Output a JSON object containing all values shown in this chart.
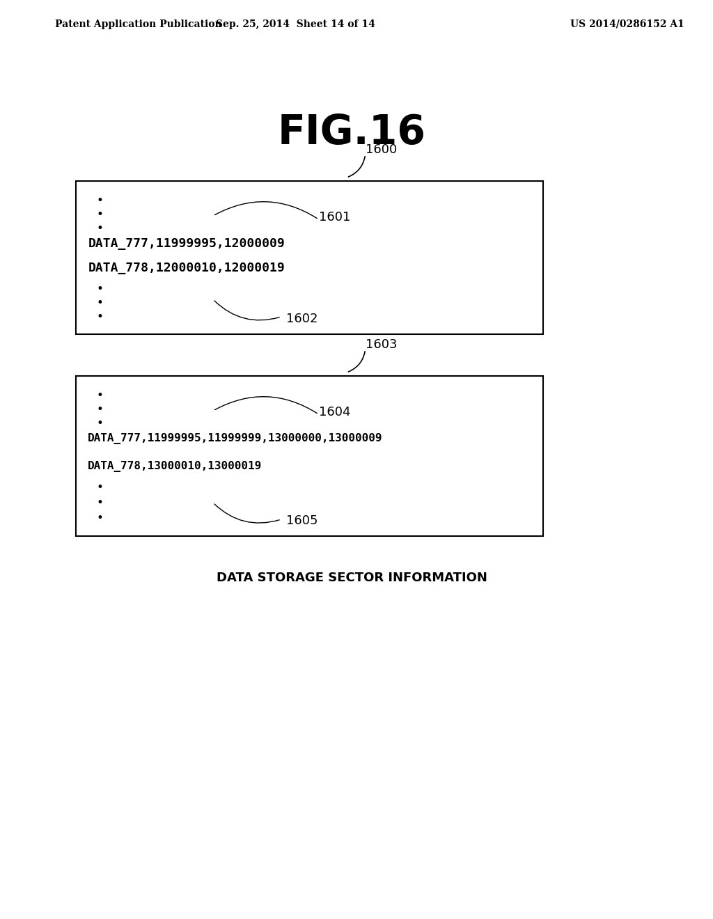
{
  "background_color": "#ffffff",
  "header_left": "Patent Application Publication",
  "header_mid": "Sep. 25, 2014  Sheet 14 of 14",
  "header_right": "US 2014/0286152 A1",
  "figure_title": "FIG.16",
  "box1_label": "1600",
  "box1_dots_top": [
    "•",
    "•",
    "•"
  ],
  "box1_label1": "1601",
  "box1_line1": "DATA_777,11999995,12000009",
  "box1_line2": "DATA_778,12000010,12000019",
  "box1_dots_bot": [
    "•",
    "•",
    "•"
  ],
  "box1_label2": "1602",
  "box2_label": "1603",
  "box2_dots_top": [
    "•",
    "•",
    "•"
  ],
  "box2_label1": "1604",
  "box2_line1": "DATA_777,11999995,11999999,13000000,13000009",
  "box2_line2": "DATA_778,13000010,13000019",
  "box2_dots_bot": [
    "•",
    "•",
    "•"
  ],
  "box2_label2": "1605",
  "caption": "DATA STORAGE SECTOR INFORMATION",
  "text_color": "#000000",
  "box_facecolor": "#ffffff",
  "box_edgecolor": "#000000"
}
